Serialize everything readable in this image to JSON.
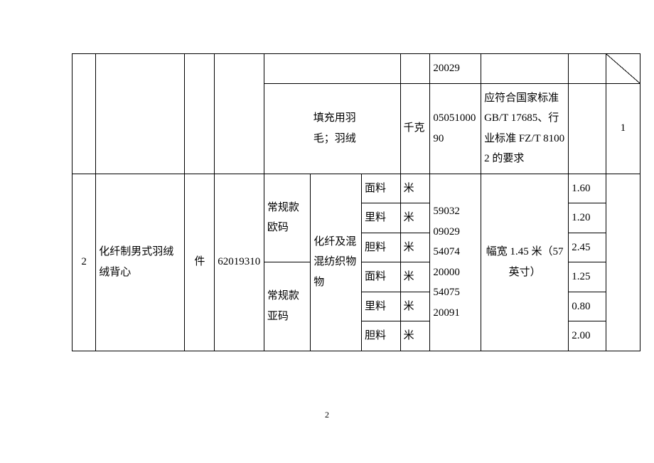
{
  "page_number": "2",
  "top": {
    "col9_upper": "20029",
    "filling_label": "填充用羽毛；羽绒",
    "unit_kg": "千克",
    "code": "0505100090",
    "req": "应符合国家标准 GB/T 17685、行业标准 FZ/T 81002 的要求",
    "qty": "1"
  },
  "row2": {
    "idx": "2",
    "name": "化纤制男式羽绒绒背心",
    "unit": "件",
    "hs": "62019310",
    "style1": "常规款欧码",
    "style2": "常规款亚码",
    "fabric_type": "化纤及混混纺织物物",
    "parts": [
      "面料",
      "里料",
      "胆料",
      "面料",
      "里料",
      "胆料"
    ],
    "part_unit": "米",
    "codes": [
      "59032",
      "09029",
      "54074",
      "20000",
      "54075",
      "20091"
    ],
    "width_spec": "幅宽 1.45 米（57 英寸）",
    "vals": [
      "1.60",
      "1.20",
      "2.45",
      "1.25",
      "0.80",
      "2.00"
    ]
  }
}
